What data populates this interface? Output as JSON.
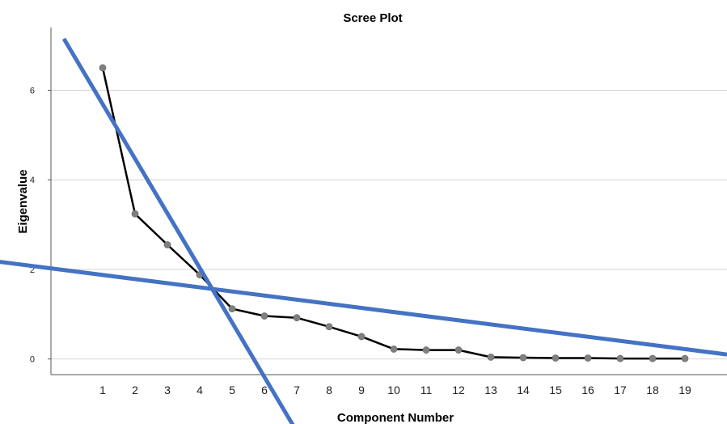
{
  "chart_data": {
    "type": "line",
    "title": "Scree Plot",
    "xlabel": "Component Number",
    "ylabel": "Eigenvalue",
    "x": [
      1,
      2,
      3,
      4,
      5,
      6,
      7,
      8,
      9,
      10,
      11,
      12,
      13,
      14,
      15,
      16,
      17,
      18,
      19
    ],
    "series": [
      {
        "values": [
          6.5,
          3.24,
          2.55,
          1.88,
          1.12,
          0.96,
          0.92,
          0.72,
          0.5,
          0.22,
          0.2,
          0.2,
          0.04,
          0.03,
          0.02,
          0.02,
          0.01,
          0.01,
          0.01
        ]
      }
    ],
    "xlim": [
      -0.6,
      20.3
    ],
    "ylim": [
      -0.35,
      7.4
    ],
    "yticks": [
      0,
      2,
      4,
      6
    ],
    "gridlines": "horizontal",
    "overlay_lines": [
      {
        "x1": -0.2,
        "y1": 7.15,
        "x2": 6.9,
        "y2": -1.5,
        "color": "#4472C4"
      },
      {
        "x1": -2.2,
        "y1": 2.17,
        "x2": 20.3,
        "y2": 0.1,
        "color": "#4472C4"
      }
    ],
    "colors": {
      "line": "#000000",
      "marker": "#808080",
      "grid": "#d4d4d4",
      "overlay": "#4472C4"
    }
  }
}
